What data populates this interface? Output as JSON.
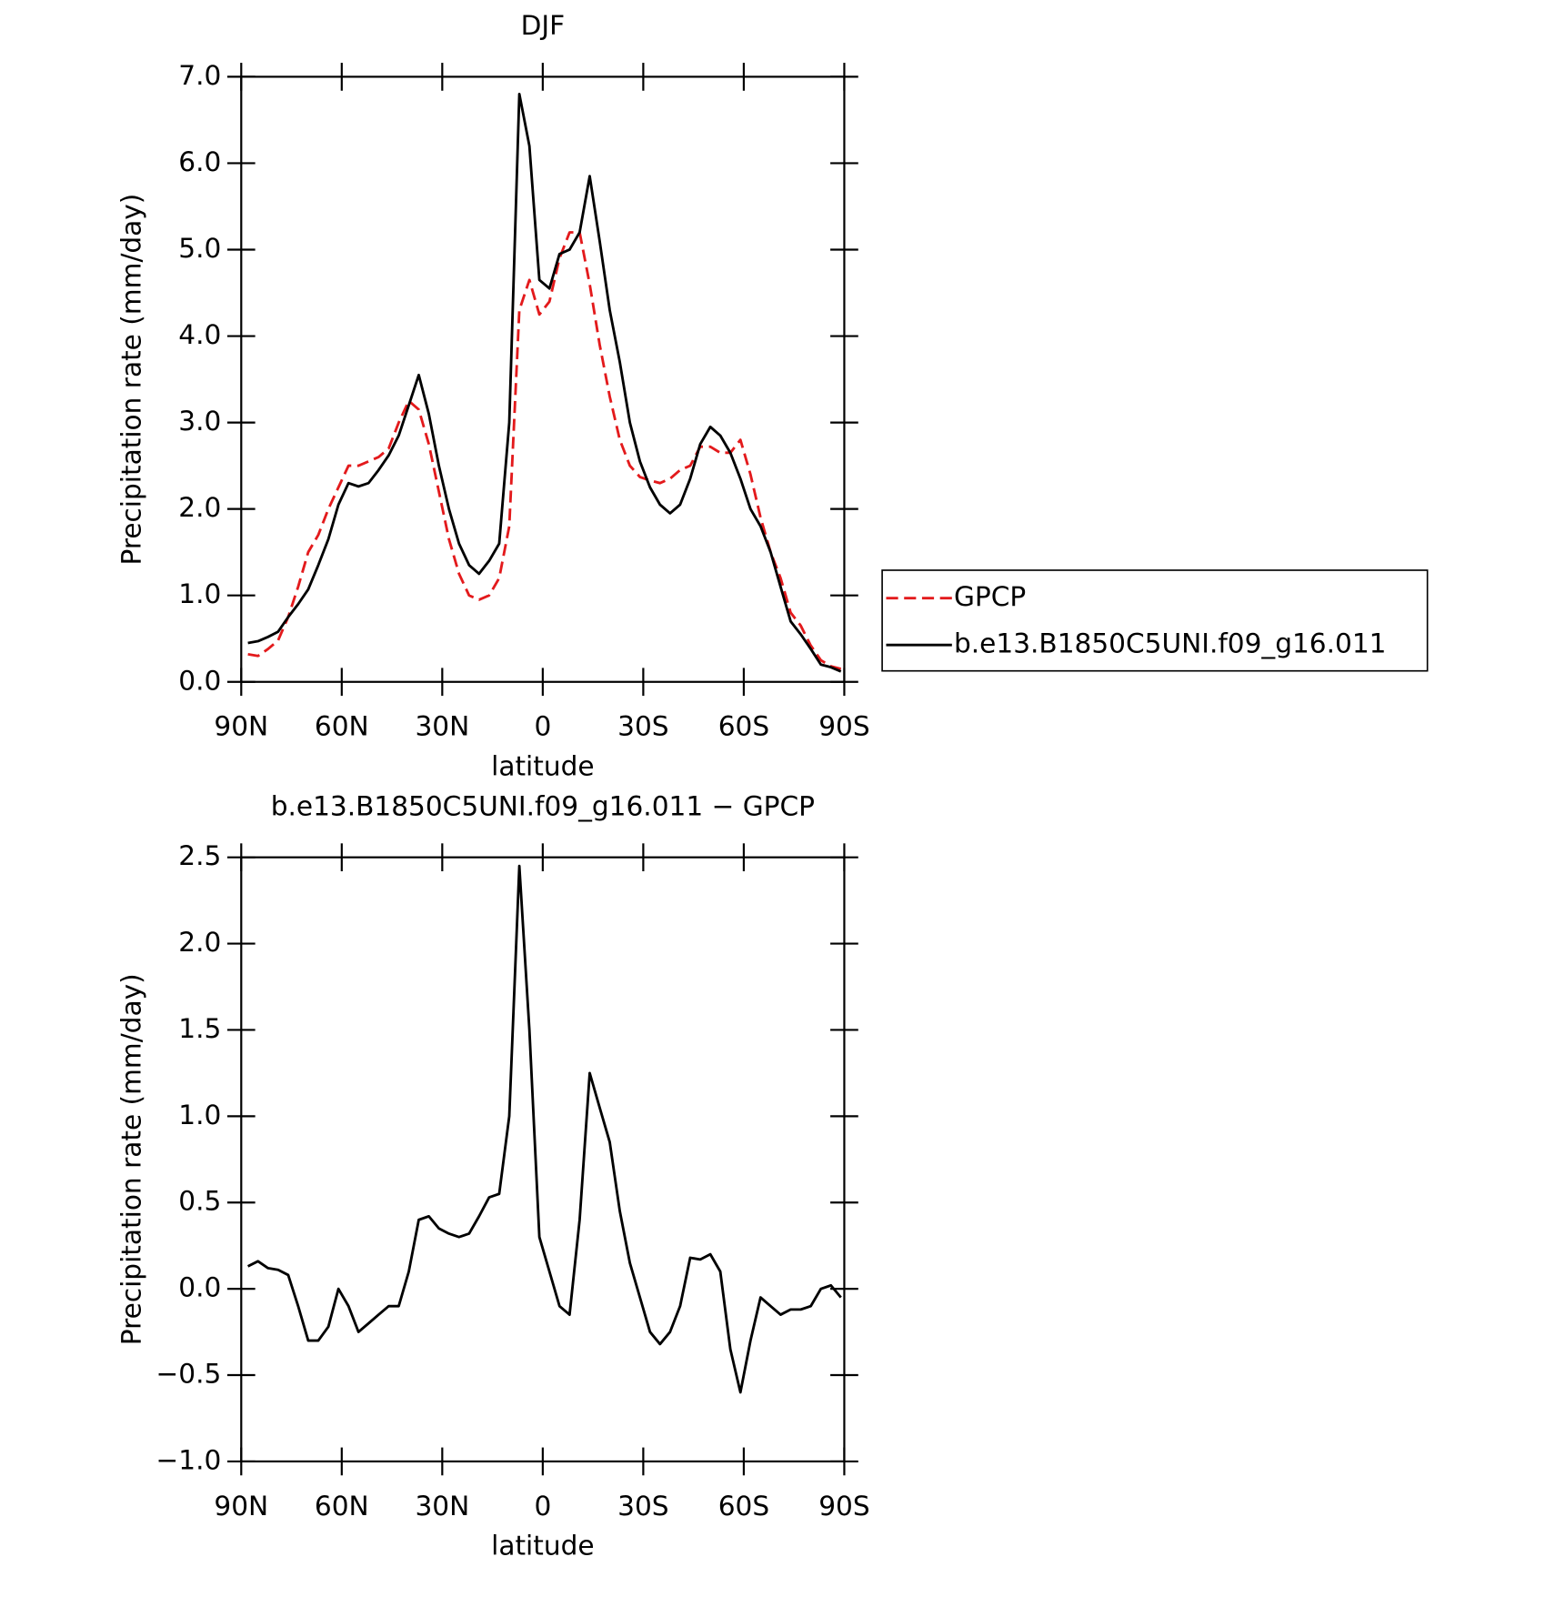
{
  "chart_data": [
    {
      "type": "line",
      "title": "DJF",
      "xlabel": "latitude",
      "ylabel": "Precipitation rate (mm/day)",
      "x": [
        88,
        85,
        82,
        79,
        76,
        73,
        70,
        67,
        64,
        61,
        58,
        55,
        52,
        49,
        46,
        43,
        40,
        37,
        34,
        31,
        28,
        25,
        22,
        19,
        16,
        13,
        10,
        7,
        4,
        1,
        -2,
        -5,
        -8,
        -11,
        -14,
        -17,
        -20,
        -23,
        -26,
        -29,
        -32,
        -35,
        -38,
        -41,
        -44,
        -47,
        -50,
        -53,
        -56,
        -59,
        -62,
        -65,
        -68,
        -71,
        -74,
        -77,
        -80,
        -83,
        -86,
        -89
      ],
      "series": [
        {
          "name": "GPCP",
          "color": "#e31a1c",
          "dash": true,
          "values": [
            0.32,
            0.3,
            0.38,
            0.48,
            0.75,
            1.1,
            1.5,
            1.7,
            2.0,
            2.25,
            2.5,
            2.5,
            2.55,
            2.6,
            2.7,
            3.0,
            3.25,
            3.15,
            2.75,
            2.2,
            1.65,
            1.25,
            1.0,
            0.95,
            1.0,
            1.2,
            1.8,
            4.3,
            4.65,
            4.25,
            4.4,
            4.9,
            5.2,
            5.2,
            4.6,
            3.9,
            3.3,
            2.8,
            2.5,
            2.37,
            2.33,
            2.3,
            2.35,
            2.45,
            2.5,
            2.72,
            2.72,
            2.65,
            2.65,
            2.8,
            2.4,
            1.9,
            1.5,
            1.2,
            0.8,
            0.65,
            0.42,
            0.25,
            0.18,
            0.15
          ]
        },
        {
          "name": "b.e13.B1850C5UNI.f09_g16.011",
          "color": "#000000",
          "dash": false,
          "values": [
            0.45,
            0.47,
            0.52,
            0.58,
            0.75,
            0.9,
            1.07,
            1.35,
            1.65,
            2.05,
            2.3,
            2.26,
            2.3,
            2.45,
            2.62,
            2.85,
            3.2,
            3.55,
            3.1,
            2.5,
            2.0,
            1.6,
            1.35,
            1.25,
            1.4,
            1.6,
            3.0,
            6.8,
            6.2,
            4.65,
            4.55,
            4.95,
            5.0,
            5.2,
            5.85,
            5.1,
            4.3,
            3.7,
            3.0,
            2.55,
            2.25,
            2.05,
            1.95,
            2.05,
            2.35,
            2.75,
            2.95,
            2.85,
            2.65,
            2.35,
            2.0,
            1.8,
            1.5,
            1.1,
            0.7,
            0.55,
            0.38,
            0.2,
            0.17,
            0.12
          ]
        }
      ],
      "xlim": [
        90,
        -90
      ],
      "xticks": [
        {
          "value": 90,
          "label": "90N"
        },
        {
          "value": 60,
          "label": "60N"
        },
        {
          "value": 30,
          "label": "30N"
        },
        0,
        {
          "value": -30,
          "label": "30S"
        },
        {
          "value": -60,
          "label": "60S"
        },
        {
          "value": -90,
          "label": "90S"
        }
      ],
      "ylim": [
        0,
        7
      ],
      "yticks": [
        {
          "value": 0,
          "label": "0.0"
        },
        {
          "value": 1,
          "label": "1.0"
        },
        {
          "value": 2,
          "label": "2.0"
        },
        {
          "value": 3,
          "label": "3.0"
        },
        {
          "value": 4,
          "label": "4.0"
        },
        {
          "value": 5,
          "label": "5.0"
        },
        {
          "value": 6,
          "label": "6.0"
        },
        {
          "value": 7,
          "label": "7.0"
        }
      ],
      "legend": "outside-right"
    },
    {
      "type": "line",
      "title": "b.e13.B1850C5UNI.f09_g16.011 − GPCP",
      "xlabel": "latitude",
      "ylabel": "Precipitation rate (mm/day)",
      "x": [
        88,
        85,
        82,
        79,
        76,
        73,
        70,
        67,
        64,
        61,
        58,
        55,
        52,
        49,
        46,
        43,
        40,
        37,
        34,
        31,
        28,
        25,
        22,
        19,
        16,
        13,
        10,
        7,
        4,
        1,
        -2,
        -5,
        -8,
        -11,
        -14,
        -17,
        -20,
        -23,
        -26,
        -29,
        -32,
        -35,
        -38,
        -41,
        -44,
        -47,
        -50,
        -53,
        -56,
        -59,
        -62,
        -65,
        -68,
        -71,
        -74,
        -77,
        -80,
        -83,
        -86,
        -89
      ],
      "series": [
        {
          "color": "#000000",
          "dash": false,
          "values": [
            0.13,
            0.16,
            0.12,
            0.11,
            0.08,
            -0.1,
            -0.3,
            -0.3,
            -0.22,
            0.0,
            -0.1,
            -0.25,
            -0.2,
            -0.15,
            -0.1,
            -0.1,
            0.1,
            0.4,
            0.42,
            0.35,
            0.32,
            0.3,
            0.32,
            0.42,
            0.53,
            0.55,
            1.0,
            2.45,
            1.5,
            0.3,
            0.1,
            -0.1,
            -0.15,
            0.4,
            1.25,
            1.05,
            0.85,
            0.45,
            0.15,
            -0.05,
            -0.25,
            -0.32,
            -0.25,
            -0.1,
            0.18,
            0.17,
            0.2,
            0.1,
            -0.35,
            -0.6,
            -0.3,
            -0.05,
            -0.1,
            -0.15,
            -0.12,
            -0.12,
            -0.1,
            0.0,
            0.02,
            -0.05
          ]
        }
      ],
      "xlim": [
        90,
        -90
      ],
      "xticks": [
        {
          "value": 90,
          "label": "90N"
        },
        {
          "value": 60,
          "label": "60N"
        },
        {
          "value": 30,
          "label": "30N"
        },
        0,
        {
          "value": -30,
          "label": "30S"
        },
        {
          "value": -60,
          "label": "60S"
        },
        {
          "value": -90,
          "label": "90S"
        }
      ],
      "ylim": [
        -1,
        2.5
      ],
      "yticks": [
        {
          "value": -1,
          "label": "−1.0"
        },
        {
          "value": -0.5,
          "label": "−0.5"
        },
        {
          "value": 0,
          "label": "0.0"
        },
        0.5,
        {
          "value": 1,
          "label": "1.0"
        },
        1.5,
        {
          "value": 2,
          "label": "2.0"
        },
        2.5
      ]
    }
  ]
}
